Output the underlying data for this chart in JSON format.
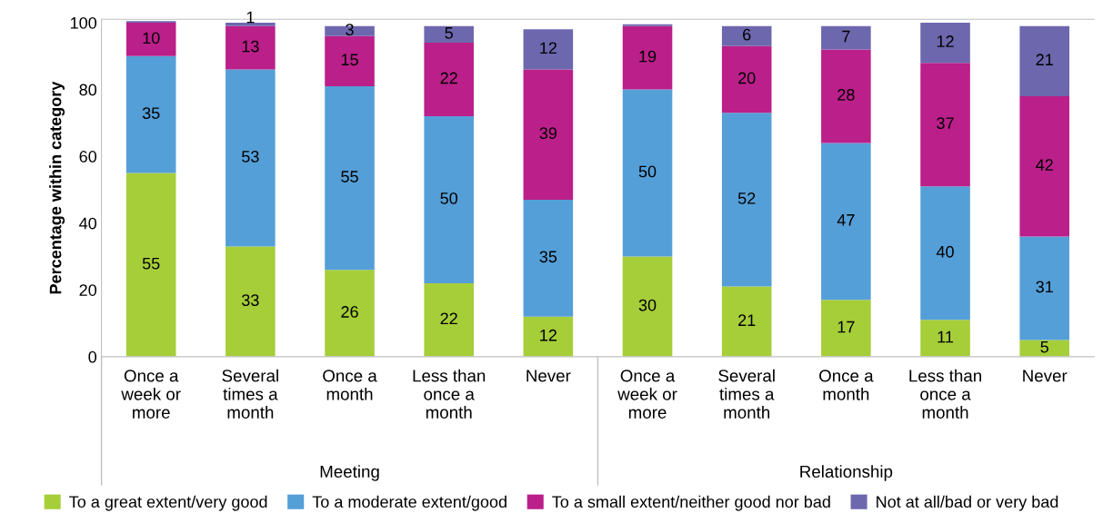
{
  "chart_data": {
    "type": "bar",
    "stacked": true,
    "ylabel": "Percentage within category",
    "categories": [
      "Once a\nweek or\nmore",
      "Several\ntimes a\nmonth",
      "Once a\nmonth",
      "Less than\nonce a\nmonth",
      "Never",
      "Once a\nweek or\nmore",
      "Several\ntimes a\nmonth",
      "Once a\nmonth",
      "Less than\nonce a\nmonth",
      "Never"
    ],
    "annotations": [
      "Meeting",
      "Relationship"
    ],
    "series": [
      {
        "name": "To a great extent/very good",
        "color": "#a6ce39",
        "values": [
          55,
          33,
          26,
          22,
          12,
          30,
          21,
          17,
          11,
          5
        ],
        "value_labels": [
          "55",
          "33",
          "26",
          "22",
          "12",
          "30",
          "21",
          "17",
          "11",
          "5"
        ]
      },
      {
        "name": "To a moderate extent/good",
        "color": "#559fd8",
        "values": [
          35,
          53,
          55,
          50,
          35,
          50,
          52,
          47,
          40,
          31
        ],
        "value_labels": [
          "35",
          "53",
          "55",
          "50",
          "35",
          "50",
          "52",
          "47",
          "40",
          "31"
        ]
      },
      {
        "name": "To a small extent/neither good nor bad",
        "color": "#bb1f8a",
        "values": [
          10,
          13,
          15,
          22,
          39,
          19,
          20,
          28,
          37,
          42
        ],
        "value_labels": [
          "10",
          "13",
          "15",
          "22",
          "39",
          "19",
          "20",
          "28",
          "37",
          "42"
        ]
      },
      {
        "name": "Not at all/bad or very bad",
        "color": "#6d67ae",
        "values": [
          0.5,
          1,
          3,
          5,
          12,
          0.5,
          6,
          7,
          12,
          21
        ],
        "value_labels": [
          null,
          "1",
          "3",
          "5",
          "12",
          null,
          "6",
          "7",
          "12",
          "21"
        ]
      }
    ],
    "ylim": [
      0,
      101
    ],
    "yticks": [
      0,
      20,
      40,
      60,
      80,
      100
    ],
    "grid": false,
    "legend": "bottom"
  }
}
